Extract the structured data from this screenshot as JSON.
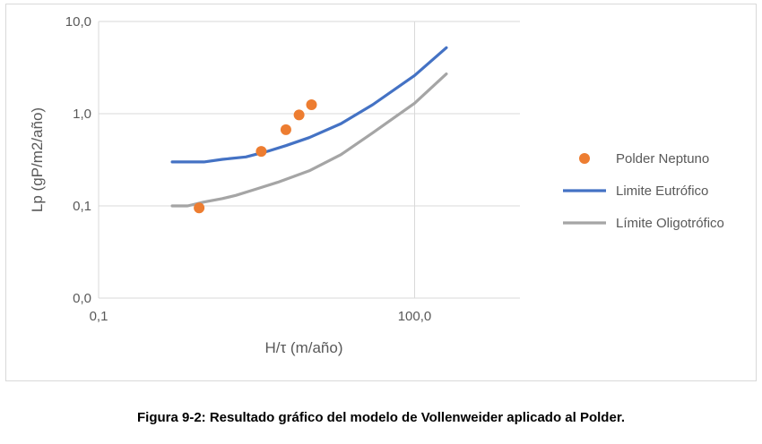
{
  "caption": "Figura 9-2: Resultado gráfico del modelo de Vollenweider aplicado al Polder.",
  "chart_data": {
    "type": "scatter",
    "xlabel": "H/τ (m/año)",
    "ylabel": "Lp (gP/m2/año)",
    "x_scale": "log",
    "y_scale": "log",
    "xlim": [
      0.1,
      1000
    ],
    "ylim": [
      0.01,
      10
    ],
    "x_ticks": [
      {
        "value": 0.1,
        "label": "0,1"
      },
      {
        "value": 100,
        "label": "100,0"
      }
    ],
    "y_ticks": [
      {
        "value": 10,
        "label": "10,0"
      },
      {
        "value": 1,
        "label": "1,0"
      },
      {
        "value": 0.1,
        "label": "0,1"
      },
      {
        "value": 0.01,
        "label": "0,0"
      }
    ],
    "vertical_gridlines": [
      100
    ],
    "grid": true,
    "legend_position": "right",
    "series": [
      {
        "name": "Polder Neptuno",
        "kind": "scatter",
        "color": "#ED7D31",
        "points": [
          [
            0.9,
            0.095
          ],
          [
            3.5,
            0.39
          ],
          [
            6.0,
            0.67
          ],
          [
            8.0,
            0.97
          ],
          [
            10.5,
            1.25
          ]
        ]
      },
      {
        "name": "Limite Eutrófico",
        "kind": "line",
        "color": "#4472C4",
        "points": [
          [
            0.5,
            0.3
          ],
          [
            1.0,
            0.3
          ],
          [
            1.5,
            0.32
          ],
          [
            2.5,
            0.34
          ],
          [
            4.0,
            0.39
          ],
          [
            6.0,
            0.45
          ],
          [
            10.0,
            0.55
          ],
          [
            20.0,
            0.78
          ],
          [
            40.0,
            1.25
          ],
          [
            100.0,
            2.6
          ],
          [
            200.0,
            5.2
          ]
        ]
      },
      {
        "name": "Límite Oligotrófico",
        "kind": "line",
        "color": "#A5A5A5",
        "points": [
          [
            0.5,
            0.1
          ],
          [
            0.7,
            0.1
          ],
          [
            1.0,
            0.11
          ],
          [
            1.5,
            0.12
          ],
          [
            2.0,
            0.13
          ],
          [
            3.0,
            0.15
          ],
          [
            5.0,
            0.18
          ],
          [
            10.0,
            0.24
          ],
          [
            20.0,
            0.36
          ],
          [
            40.0,
            0.62
          ],
          [
            100.0,
            1.3
          ],
          [
            200.0,
            2.7
          ]
        ]
      }
    ]
  }
}
